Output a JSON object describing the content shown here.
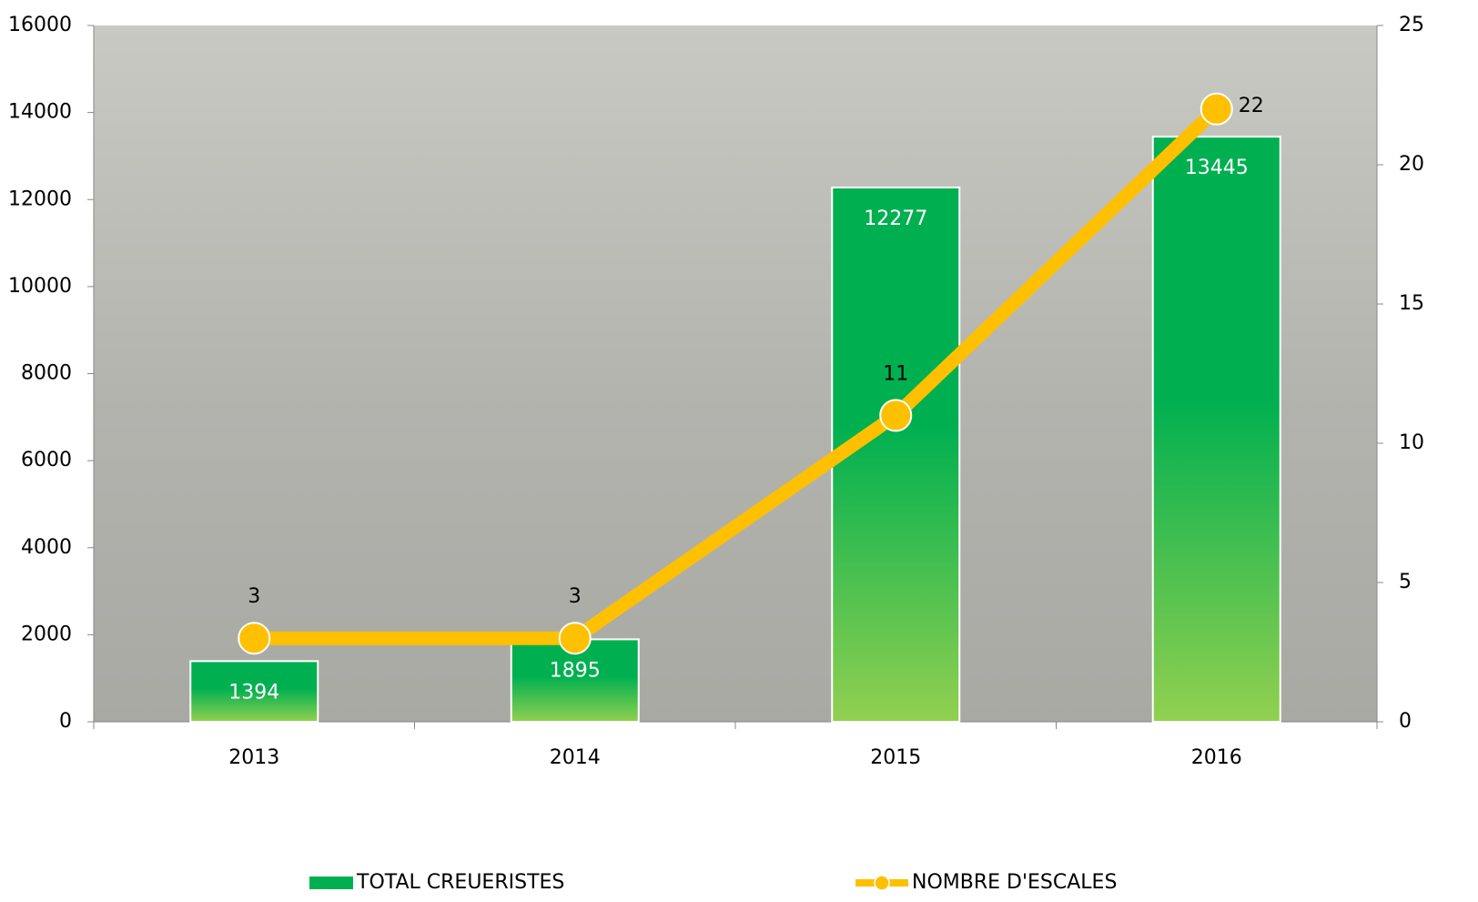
{
  "chart_data": {
    "type": "bar",
    "categories": [
      "2013",
      "2014",
      "2015",
      "2016"
    ],
    "series": [
      {
        "name": "TOTAL CREUERISTES",
        "type": "bar",
        "color": "#00b050",
        "values": [
          1394,
          1895,
          12277,
          13445
        ]
      },
      {
        "name": "NOMBRE D'ESCALES",
        "type": "line",
        "axis": "y2",
        "color": "#ffc000",
        "values": [
          3,
          3,
          11,
          22
        ]
      }
    ],
    "ylim": [
      0,
      16000
    ],
    "yticks": [
      0,
      2000,
      4000,
      6000,
      8000,
      10000,
      12000,
      14000,
      16000
    ],
    "y2lim": [
      0,
      25
    ],
    "y2ticks": [
      0,
      5,
      10,
      15,
      20,
      25
    ],
    "legend": "bottom"
  }
}
